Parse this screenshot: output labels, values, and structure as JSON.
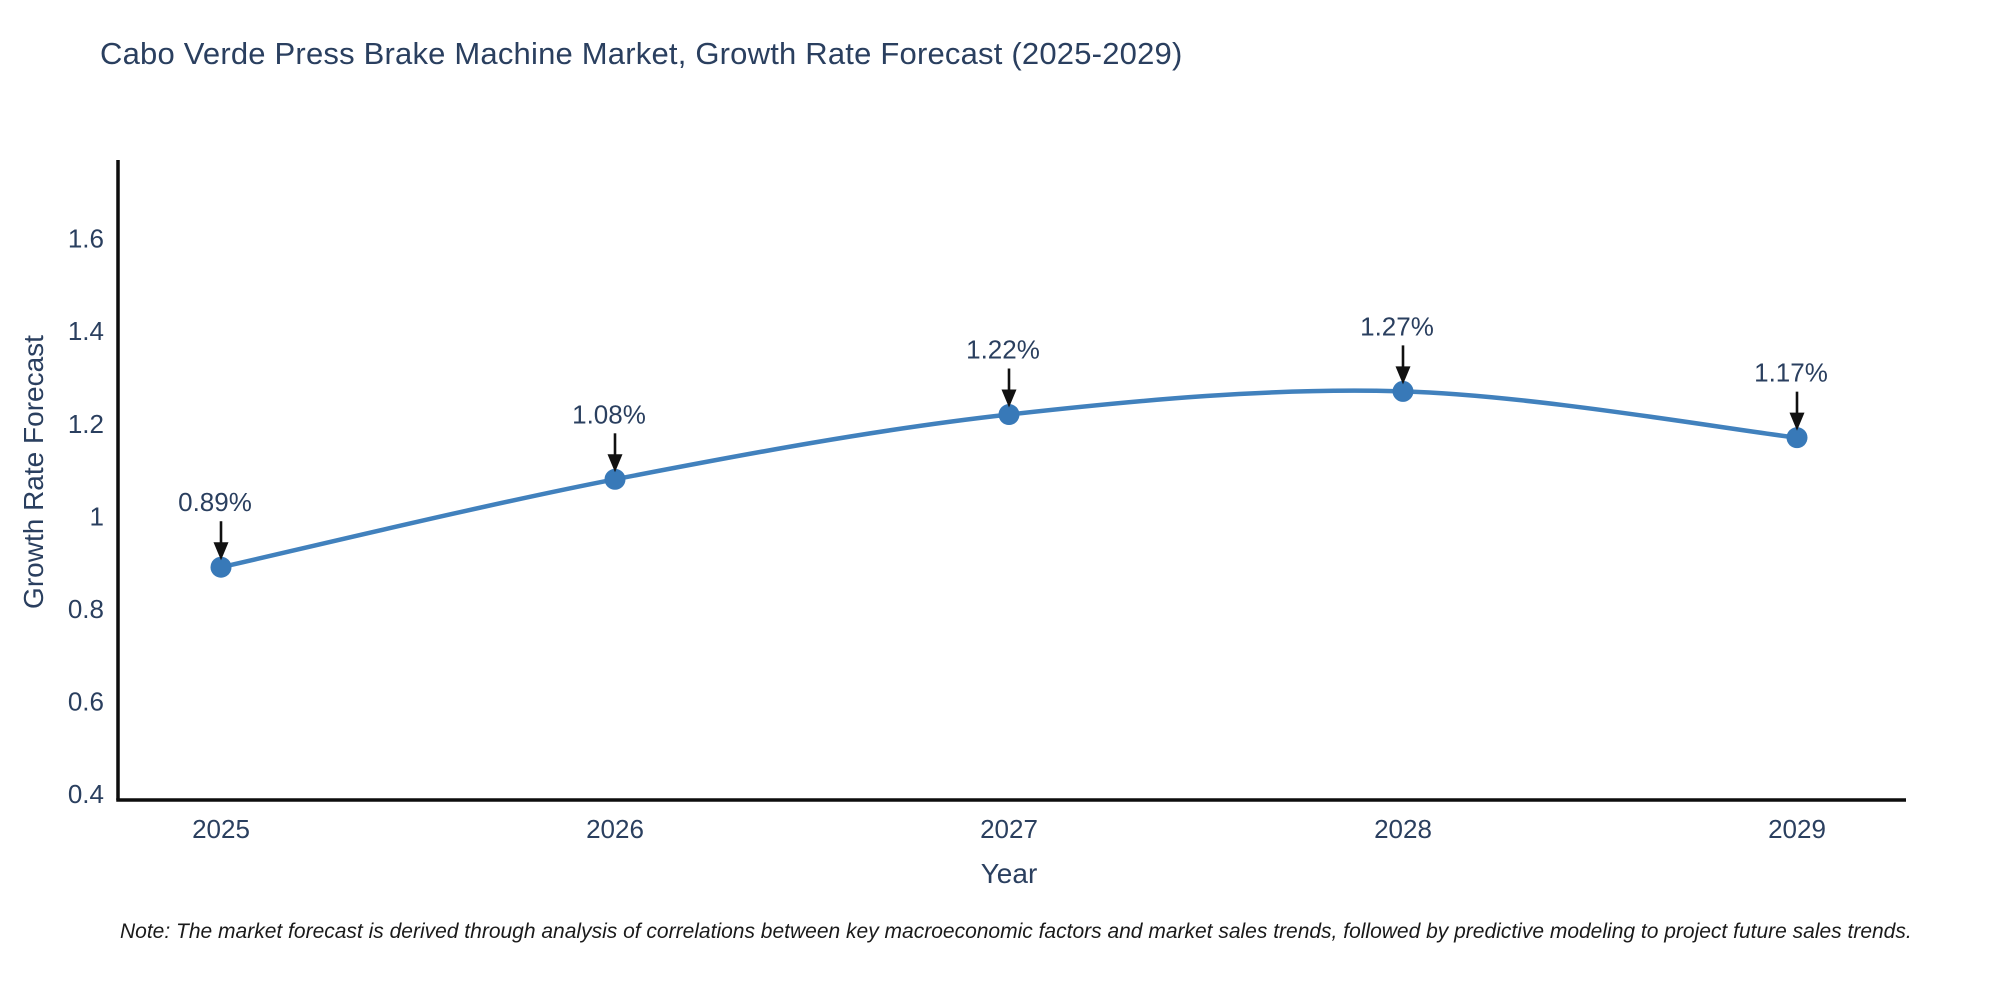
{
  "chart_data": {
    "type": "line",
    "title": "Cabo Verde Press Brake Machine Market, Growth Rate Forecast (2025-2029)",
    "xlabel": "Year",
    "ylabel": "Growth Rate Forecast",
    "x": [
      "2025",
      "2026",
      "2027",
      "2028",
      "2029"
    ],
    "series": [
      {
        "name": "Growth Rate Forecast",
        "values": [
          0.89,
          1.08,
          1.22,
          1.27,
          1.17
        ],
        "point_labels": [
          "0.89%",
          "1.08%",
          "1.22%",
          "1.27%",
          "1.17%"
        ]
      }
    ],
    "ylim": [
      0.387,
      1.77
    ],
    "ytick_labels": [
      "0.4",
      "0.6",
      "0.8",
      "1",
      "1.2",
      "1.4",
      "1.6"
    ],
    "ytick_values": [
      0.4,
      0.6,
      0.8,
      1.0,
      1.2,
      1.4,
      1.6
    ],
    "grid": false,
    "legend": false,
    "line_shape": "spline",
    "colors": {
      "line": "#4181bd",
      "marker": "#3879b8",
      "axis": "#0d0d0d",
      "tick_text": "#2a3f5f",
      "annotation_text": "#2a3f5f",
      "arrow": "#111111",
      "background": "#ffffff"
    },
    "note": "Note: The market forecast is derived through analysis of correlations between key macroeconomic factors and market sales trends, followed by predictive modeling to project future sales trends."
  }
}
